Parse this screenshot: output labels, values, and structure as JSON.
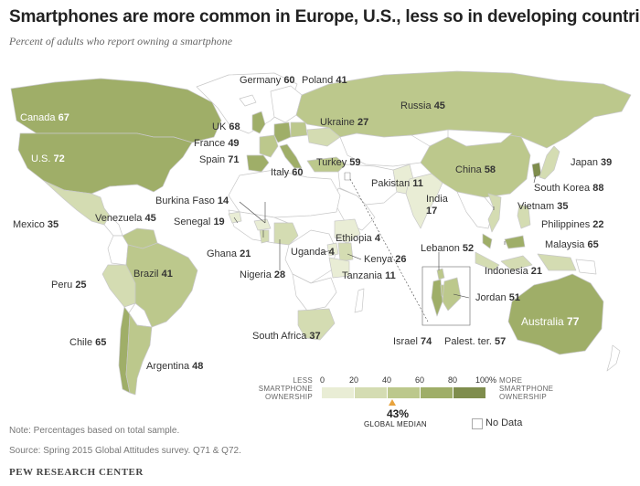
{
  "title": "Smartphones are more common in Europe, U.S., less so in developing countries",
  "subtitle": "Percent of adults who report owning a smartphone",
  "colors": {
    "land_nodata": "#ffffff",
    "land_border": "#c8c8c8",
    "bin_0_20": "#e9edd5",
    "bin_20_40": "#d4dcb2",
    "bin_40_60": "#bcc88c",
    "bin_60_80": "#9fae68",
    "bin_80_100": "#7f8d4d",
    "median_marker": "#e8a33d"
  },
  "countries": [
    {
      "name": "Canada",
      "value": "67"
    },
    {
      "name": "U.S.",
      "value": "72"
    },
    {
      "name": "Mexico",
      "value": "35"
    },
    {
      "name": "Venezuela",
      "value": "45"
    },
    {
      "name": "Brazil",
      "value": "41"
    },
    {
      "name": "Peru",
      "value": "25"
    },
    {
      "name": "Chile",
      "value": "65"
    },
    {
      "name": "Argentina",
      "value": "48"
    },
    {
      "name": "Germany",
      "value": "60"
    },
    {
      "name": "Poland",
      "value": "41"
    },
    {
      "name": "UK",
      "value": "68"
    },
    {
      "name": "France",
      "value": "49"
    },
    {
      "name": "Spain",
      "value": "71"
    },
    {
      "name": "Italy",
      "value": "60"
    },
    {
      "name": "Ukraine",
      "value": "27"
    },
    {
      "name": "Russia",
      "value": "45"
    },
    {
      "name": "Turkey",
      "value": "59"
    },
    {
      "name": "Burkina Faso",
      "value": "14"
    },
    {
      "name": "Senegal",
      "value": "19"
    },
    {
      "name": "Ghana",
      "value": "21"
    },
    {
      "name": "Nigeria",
      "value": "28"
    },
    {
      "name": "Uganda",
      "value": "4"
    },
    {
      "name": "Ethiopia",
      "value": "4"
    },
    {
      "name": "Kenya",
      "value": "26"
    },
    {
      "name": "Tanzania",
      "value": "11"
    },
    {
      "name": "South Africa",
      "value": "37"
    },
    {
      "name": "Pakistan",
      "value": "11"
    },
    {
      "name": "India",
      "value": "17"
    },
    {
      "name": "China",
      "value": "58"
    },
    {
      "name": "Japan",
      "value": "39"
    },
    {
      "name": "South Korea",
      "value": "88"
    },
    {
      "name": "Vietnam",
      "value": "35"
    },
    {
      "name": "Philippines",
      "value": "22"
    },
    {
      "name": "Malaysia",
      "value": "65"
    },
    {
      "name": "Indonesia",
      "value": "21"
    },
    {
      "name": "Australia",
      "value": "77"
    },
    {
      "name": "Lebanon",
      "value": "52"
    },
    {
      "name": "Jordan",
      "value": "51"
    },
    {
      "name": "Israel",
      "value": "74"
    },
    {
      "name": "Palest. ter.",
      "value": "57"
    }
  ],
  "legend": {
    "ticks": [
      "0",
      "20",
      "40",
      "60",
      "80",
      "100%"
    ],
    "less_label": "LESS SMARTPHONE OWNERSHIP",
    "more_label": "MORE SMARTPHONE OWNERSHIP",
    "median_value": "43%",
    "median_label": "GLOBAL MEDIAN",
    "median_fraction": 0.43,
    "no_data_label": "No Data"
  },
  "note": "Note: Percentages based on total sample.",
  "source": "Source: Spring 2015 Global Attitudes survey. Q71 & Q72.",
  "org": "PEW RESEARCH CENTER"
}
